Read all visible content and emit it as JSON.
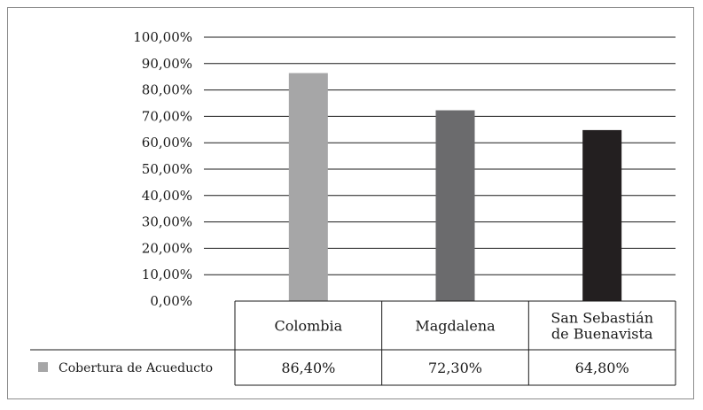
{
  "chart_data": {
    "type": "bar",
    "categories": [
      "Colombia",
      "Magdalena",
      "San Sebastián de Buenavista"
    ],
    "category_lines": [
      [
        "Colombia"
      ],
      [
        "Magdalena"
      ],
      [
        "San Sebastián",
        "de Buenavista"
      ]
    ],
    "series": [
      {
        "name": "Cobertura de Acueducto",
        "values": [
          86.4,
          72.3,
          64.8
        ],
        "value_labels": [
          "86,40%",
          "72,30%",
          "64,80%"
        ]
      }
    ],
    "bar_colors": [
      "#a6a6a7",
      "#6b6b6d",
      "#231f20"
    ],
    "legend_color": "#a6a6a7",
    "yticks": [
      "0,00%",
      "10,00%",
      "20,00%",
      "30,00%",
      "40,00%",
      "50,00%",
      "60,00%",
      "70,00%",
      "80,00%",
      "90,00%",
      "100,00%"
    ],
    "ylim": [
      0,
      100
    ],
    "grid": true,
    "legend": "data-table",
    "title": "",
    "xlabel": "",
    "ylabel": ""
  }
}
